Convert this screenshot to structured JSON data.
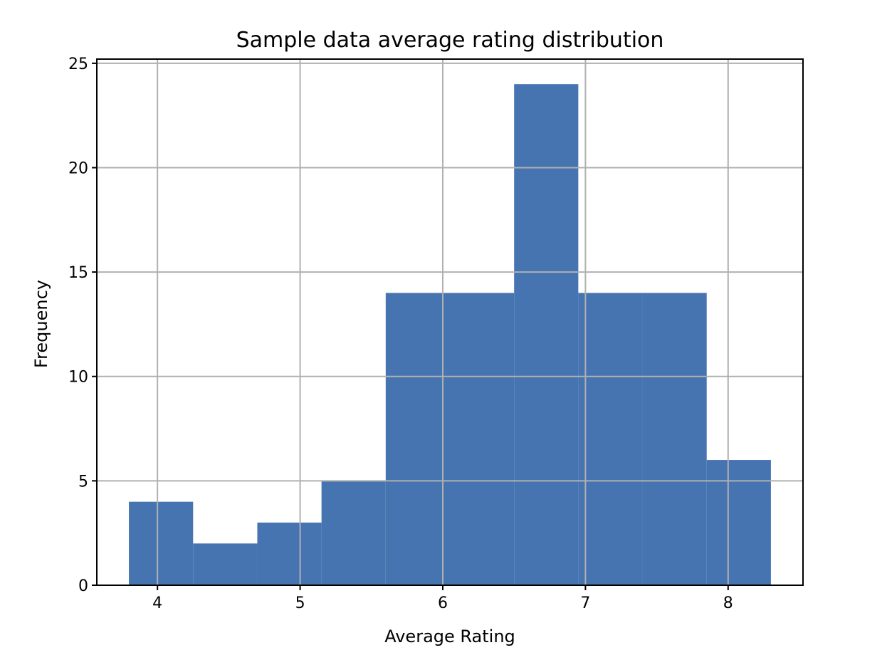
{
  "chart_data": {
    "type": "bar",
    "title": "Sample data average rating distribution",
    "xlabel": "Average Rating",
    "ylabel": "Frequency",
    "xlim": [
      3.575,
      8.525
    ],
    "ylim": [
      0,
      25.2
    ],
    "x_ticks": [
      "4",
      "5",
      "6",
      "7",
      "8"
    ],
    "y_ticks": [
      "0",
      "5",
      "10",
      "15",
      "20",
      "25"
    ],
    "grid": true,
    "bar_color": "#4674b0",
    "bins": [
      {
        "x0": 3.8,
        "x1": 4.25,
        "value": 4
      },
      {
        "x0": 4.25,
        "x1": 4.7,
        "value": 2
      },
      {
        "x0": 4.7,
        "x1": 5.15,
        "value": 3
      },
      {
        "x0": 5.15,
        "x1": 5.6,
        "value": 5
      },
      {
        "x0": 5.6,
        "x1": 6.05,
        "value": 14
      },
      {
        "x0": 6.05,
        "x1": 6.5,
        "value": 14
      },
      {
        "x0": 6.5,
        "x1": 6.95,
        "value": 24
      },
      {
        "x0": 6.95,
        "x1": 7.4,
        "value": 14
      },
      {
        "x0": 7.4,
        "x1": 7.85,
        "value": 14
      },
      {
        "x0": 7.85,
        "x1": 8.3,
        "value": 6
      }
    ]
  }
}
